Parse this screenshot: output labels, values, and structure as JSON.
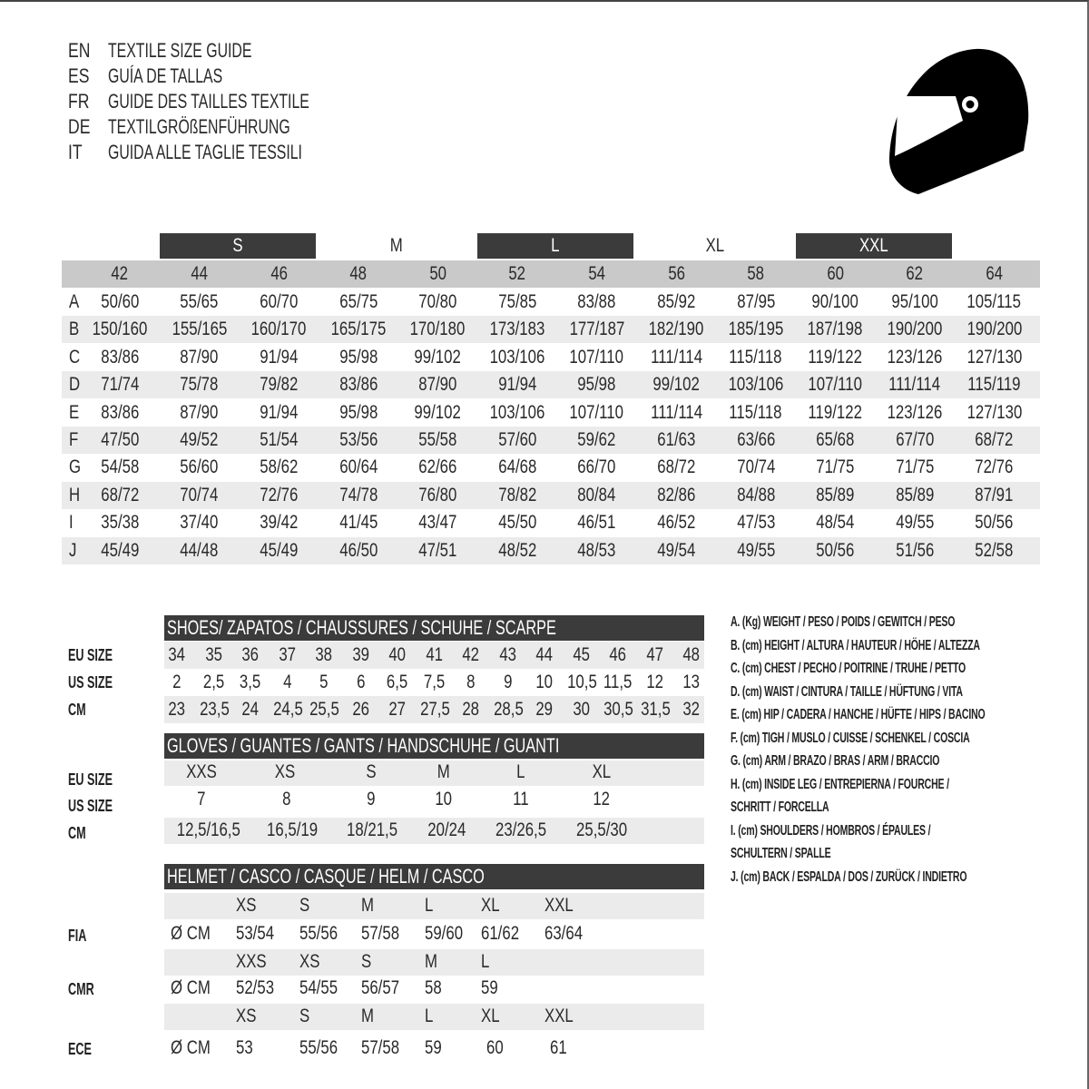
{
  "header": {
    "lines": [
      {
        "code": "EN",
        "text": "TEXTILE SIZE GUIDE"
      },
      {
        "code": "ES",
        "text": "GUÍA DE TALLAS"
      },
      {
        "code": "FR",
        "text": "GUIDE DES TAILLES TEXTILE"
      },
      {
        "code": "DE",
        "text": "TEXTILGRÖßENFÜHRUNG"
      },
      {
        "code": "IT",
        "text": "GUIDA ALLE TAGLIE TESSILI"
      }
    ],
    "icon": "helmet-icon"
  },
  "textile": {
    "size_groups": [
      {
        "label": "S",
        "columns": [
          "44",
          "46"
        ],
        "style": "dark"
      },
      {
        "label": "M",
        "columns": [
          "48",
          "50"
        ],
        "style": "light"
      },
      {
        "label": "L",
        "columns": [
          "52",
          "54"
        ],
        "style": "dark"
      },
      {
        "label": "XL",
        "columns": [
          "56",
          "58"
        ],
        "style": "light"
      },
      {
        "label": "XXL",
        "columns": [
          "60",
          "62"
        ],
        "style": "dark"
      }
    ],
    "sizes": [
      "42",
      "44",
      "46",
      "48",
      "50",
      "52",
      "54",
      "56",
      "58",
      "60",
      "62",
      "64"
    ],
    "rows": [
      {
        "id": "A",
        "values": [
          "50/60",
          "55/65",
          "60/70",
          "65/75",
          "70/80",
          "75/85",
          "83/88",
          "85/92",
          "87/95",
          "90/100",
          "95/100",
          "105/115"
        ]
      },
      {
        "id": "B",
        "values": [
          "150/160",
          "155/165",
          "160/170",
          "165/175",
          "170/180",
          "173/183",
          "177/187",
          "182/190",
          "185/195",
          "187/198",
          "190/200",
          "190/200"
        ]
      },
      {
        "id": "C",
        "values": [
          "83/86",
          "87/90",
          "91/94",
          "95/98",
          "99/102",
          "103/106",
          "107/110",
          "111/114",
          "115/118",
          "119/122",
          "123/126",
          "127/130"
        ]
      },
      {
        "id": "D",
        "values": [
          "71/74",
          "75/78",
          "79/82",
          "83/86",
          "87/90",
          "91/94",
          "95/98",
          "99/102",
          "103/106",
          "107/110",
          "111/114",
          "115/119"
        ]
      },
      {
        "id": "E",
        "values": [
          "83/86",
          "87/90",
          "91/94",
          "95/98",
          "99/102",
          "103/106",
          "107/110",
          "111/114",
          "115/118",
          "119/122",
          "123/126",
          "127/130"
        ]
      },
      {
        "id": "F",
        "values": [
          "47/50",
          "49/52",
          "51/54",
          "53/56",
          "55/58",
          "57/60",
          "59/62",
          "61/63",
          "63/66",
          "65/68",
          "67/70",
          "68/72"
        ]
      },
      {
        "id": "G",
        "values": [
          "54/58",
          "56/60",
          "58/62",
          "60/64",
          "62/66",
          "64/68",
          "66/70",
          "68/72",
          "70/74",
          "71/75",
          "71/75",
          "72/76"
        ]
      },
      {
        "id": "H",
        "values": [
          "68/72",
          "70/74",
          "72/76",
          "74/78",
          "76/80",
          "78/82",
          "80/84",
          "82/86",
          "84/88",
          "85/89",
          "85/89",
          "87/91"
        ]
      },
      {
        "id": "I",
        "values": [
          "35/38",
          "37/40",
          "39/42",
          "41/45",
          "43/47",
          "45/50",
          "46/51",
          "46/52",
          "47/53",
          "48/54",
          "49/55",
          "50/56"
        ]
      },
      {
        "id": "J",
        "values": [
          "45/49",
          "44/48",
          "45/49",
          "46/50",
          "47/51",
          "48/52",
          "48/53",
          "49/54",
          "49/55",
          "50/56",
          "51/56",
          "52/58"
        ]
      }
    ]
  },
  "shoes": {
    "title": "SHOES/ ZAPATOS / CHAUSSURES / SCHUHE / SCARPE",
    "rows": [
      {
        "label": "EU SIZE",
        "values": [
          "34",
          "35",
          "36",
          "37",
          "38",
          "39",
          "40",
          "41",
          "42",
          "43",
          "44",
          "45",
          "46",
          "47",
          "48"
        ]
      },
      {
        "label": "US SIZE",
        "values": [
          "2",
          "2,5",
          "3,5",
          "4",
          "5",
          "6",
          "6,5",
          "7,5",
          "8",
          "9",
          "10",
          "10,5",
          "11,5",
          "12",
          "13"
        ]
      },
      {
        "label": "CM",
        "values": [
          "23",
          "23,5",
          "24",
          "24,5",
          "25,5",
          "26",
          "27",
          "27,5",
          "28",
          "28,5",
          "29",
          "30",
          "30,5",
          "31,5",
          "32"
        ]
      }
    ]
  },
  "gloves": {
    "title": "GLOVES / GUANTES / GANTS / HANDSCHUHE / GUANTI",
    "rows": [
      {
        "label": "EU SIZE",
        "values": [
          "XXS",
          "XS",
          "S",
          "M",
          "L",
          "XL"
        ]
      },
      {
        "label": "US SIZE",
        "values": [
          "7",
          "8",
          "9",
          "10",
          "11",
          "12"
        ]
      },
      {
        "label": "CM",
        "values": [
          "12,5/16,5",
          "16,5/19",
          "18/21,5",
          "20/24",
          "23/26,5",
          "25,5/30"
        ]
      }
    ]
  },
  "helmet": {
    "title": "HELMET / CASCO / CASQUE / HELM / CASCO",
    "groups": [
      {
        "label": "FIA",
        "unit": "Ø CM",
        "sizes": [
          "XS",
          "S",
          "M",
          "L",
          "XL",
          "XXL"
        ],
        "values": [
          "53/54",
          "55/56",
          "57/58",
          "59/60",
          "61/62",
          "63/64"
        ]
      },
      {
        "label": "CMR",
        "unit": "Ø CM",
        "sizes": [
          "XXS",
          "XS",
          "S",
          "M",
          "L"
        ],
        "values": [
          "52/53",
          "54/55",
          "56/57",
          "58",
          "59"
        ]
      },
      {
        "label": "ECE",
        "unit": "Ø CM",
        "sizes": [
          "XS",
          "S",
          "M",
          "L",
          "XL",
          "XXL"
        ],
        "values": [
          "53",
          "55/56",
          "57/58",
          "59",
          "60",
          "61"
        ]
      }
    ]
  },
  "legend": [
    "A. (Kg) WEIGHT / PESO / POIDS / GEWITCH / PESO",
    "B. (cm) HEIGHT / ALTURA / HAUTEUR / HÖHE / ALTEZZA",
    "C. (cm) CHEST / PECHO / POITRINE / TRUHE / PETTO",
    "D. (cm) WAIST / CINTURA / TAILLE / HÜFTUNG / VITA",
    "E. (cm) HIP / CADERA / HANCHE / HÜFTE / HIPS /  BACINO",
    "F.  (cm) TIGH / MUSLO / CUISSE / SCHENKEL / COSCIA",
    "G. (cm) ARM  / BRAZO / BRAS / ARM / BRACCIO",
    "H. (cm) INSIDE LEG / ENTREPIERNA / FOURCHE /",
    "SCHRITT / FORCELLA",
    "I.  (cm) SHOULDERS / HOMBROS / ÉPAULES /",
    "SCHULTERN / SPALLE",
    "J. (cm) BACK / ESPALDA / DOS / ZURÜCK / INDIETRO"
  ],
  "colors": {
    "dark_band": "#3b3b3b",
    "size_row": "#c9c9c9",
    "stripe": "#ebebeb",
    "text": "#2a2a2a"
  }
}
